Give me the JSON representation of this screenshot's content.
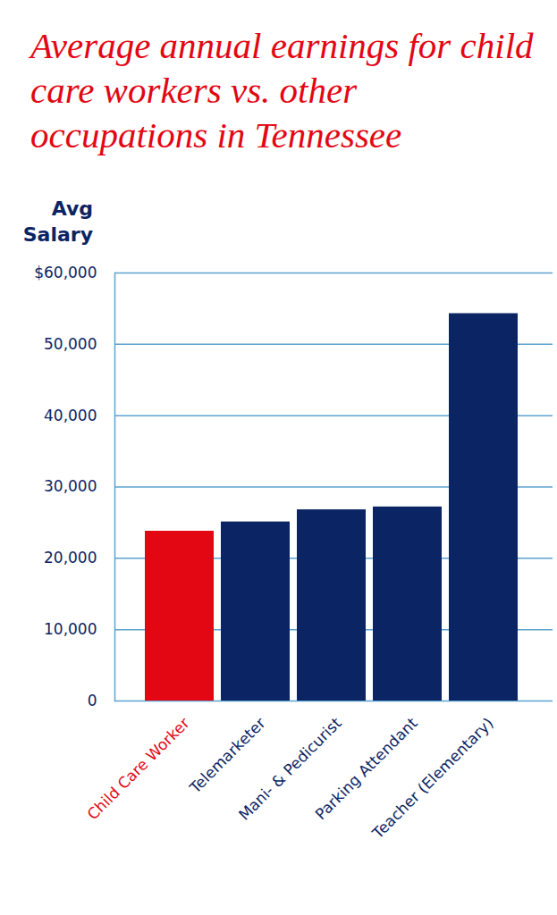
{
  "chart_data": {
    "type": "bar",
    "title": "Average annual earnings for child care workers vs. other occupations in Tennessee",
    "y_label": "Avg Salary",
    "categories": [
      "Child Care Worker",
      "Telemarketer",
      "Mani- & Pedicurist",
      "Parking Attendant",
      "Teacher (Elementary)"
    ],
    "values": [
      23800,
      25100,
      26800,
      27200,
      54300
    ],
    "colors": [
      "#e30613",
      "#0b2463",
      "#0b2463",
      "#0b2463",
      "#0b2463"
    ],
    "ylim": [
      0,
      60000
    ],
    "yticks": [
      0,
      {
        "value": 10000,
        "label": "10,000"
      },
      {
        "value": 20000,
        "label": "20,000"
      },
      {
        "value": 30000,
        "label": "30,000"
      },
      {
        "value": 40000,
        "label": "40,000"
      },
      {
        "value": 50000,
        "label": "50,000"
      },
      {
        "value": 60000,
        "label": "$60,000"
      }
    ],
    "grid": true
  }
}
